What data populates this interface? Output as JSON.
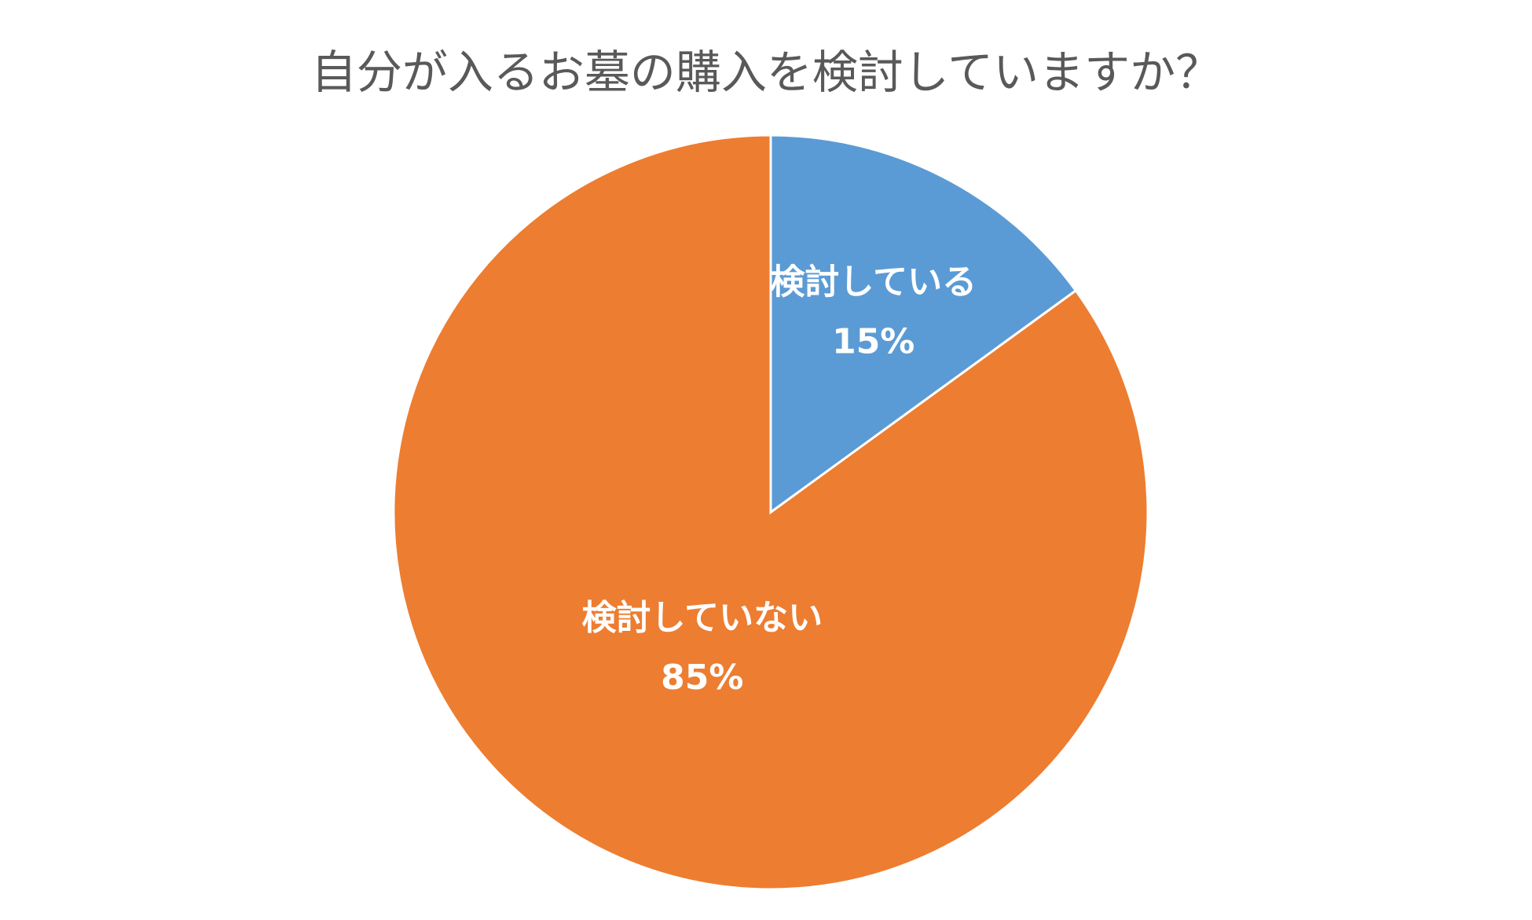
{
  "chart_data": {
    "type": "pie",
    "title": "自分が入るお墓の購入を検討していますか？",
    "categories": [
      "検討している",
      "検討していない"
    ],
    "values": [
      15,
      85
    ],
    "value_labels": [
      "15%",
      "85%"
    ],
    "colors": [
      "#5b9bd5",
      "#ed7d31"
    ]
  }
}
